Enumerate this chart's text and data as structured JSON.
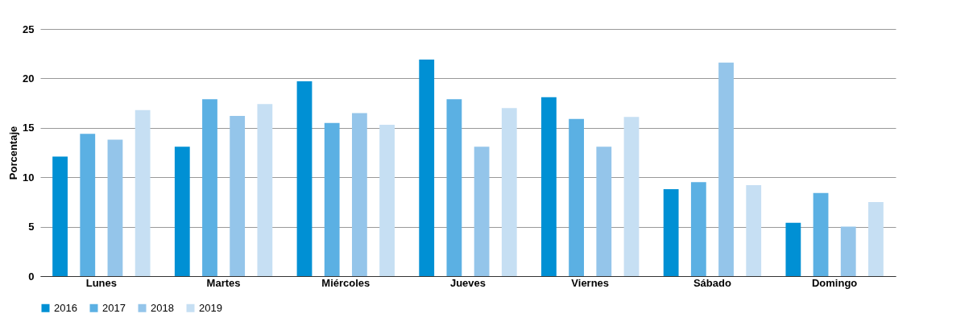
{
  "chart_data": {
    "type": "bar",
    "ylabel": "Porcentaje",
    "categories": [
      "Lunes",
      "Martes",
      "Miércoles",
      "Jueves",
      "Viernes",
      "Sábado",
      "Domingo"
    ],
    "series": [
      {
        "name": "2016",
        "color": "#0090d4",
        "values": [
          12.1,
          13.1,
          19.7,
          21.9,
          18.1,
          8.8,
          5.4
        ]
      },
      {
        "name": "2017",
        "color": "#5bb0e3",
        "values": [
          14.4,
          17.9,
          15.5,
          17.9,
          15.9,
          9.5,
          8.4
        ]
      },
      {
        "name": "2018",
        "color": "#94c5ea",
        "values": [
          13.8,
          16.2,
          16.5,
          13.1,
          13.1,
          21.6,
          5.0
        ]
      },
      {
        "name": "2019",
        "color": "#c6dff3",
        "values": [
          16.8,
          17.4,
          15.3,
          17.0,
          16.1,
          9.2,
          7.5
        ]
      }
    ],
    "ylim": [
      0,
      25
    ],
    "yticks": [
      0,
      5,
      10,
      15,
      20,
      25
    ],
    "grid": "y",
    "legend": "bottom"
  }
}
